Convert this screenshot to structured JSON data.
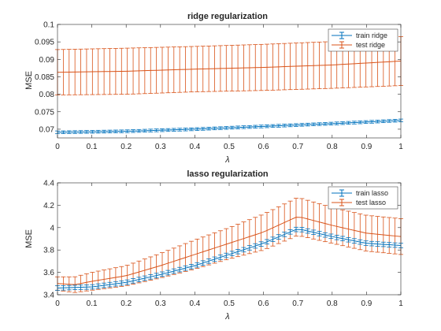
{
  "colors": {
    "train": "#0072BD",
    "test": "#D95319",
    "axis": "#262626"
  },
  "chart_data": [
    {
      "type": "line",
      "title": "ridge regularization",
      "xlabel": "λ",
      "ylabel": "MSE",
      "xlim": [
        0,
        1
      ],
      "ylim": [
        0.0675,
        0.1
      ],
      "xticks": [
        "0",
        "0.1",
        "0.2",
        "0.3",
        "0.4",
        "0.5",
        "0.6",
        "0.7",
        "0.8",
        "0.9",
        "1"
      ],
      "yticks": [
        "0.07",
        "0.075",
        "0.08",
        "0.085",
        "0.09",
        "0.095",
        "0.1"
      ],
      "legend": {
        "location": "top-right",
        "entries": [
          "train ridge",
          "test ridge"
        ]
      },
      "errorbars": true,
      "x_range": [
        0,
        1
      ],
      "n_points": 60,
      "series": [
        {
          "name": "train ridge",
          "color_key": "train",
          "x_anchors": [
            0,
            0.2,
            0.4,
            0.6,
            0.8,
            1.0
          ],
          "mean_anchors": [
            0.0691,
            0.0694,
            0.07,
            0.0708,
            0.0716,
            0.0725
          ],
          "err_anchors": [
            0.0004,
            0.0004,
            0.0004,
            0.0004,
            0.0004,
            0.0004
          ]
        },
        {
          "name": "test ridge",
          "color_key": "test",
          "x_anchors": [
            0,
            0.2,
            0.4,
            0.6,
            0.8,
            1.0
          ],
          "mean_anchors": [
            0.0863,
            0.0866,
            0.0872,
            0.0877,
            0.0884,
            0.0895
          ],
          "err_anchors": [
            0.0065,
            0.0066,
            0.0065,
            0.0066,
            0.0067,
            0.007
          ]
        }
      ]
    },
    {
      "type": "line",
      "title": "lasso regularization",
      "xlabel": "λ",
      "ylabel": "MSE",
      "xlim": [
        0,
        1
      ],
      "ylim": [
        3.4,
        4.4
      ],
      "xticks": [
        "0",
        "0.1",
        "0.2",
        "0.3",
        "0.4",
        "0.5",
        "0.6",
        "0.7",
        "0.8",
        "0.9",
        "1"
      ],
      "yticks": [
        "3.4",
        "3.6",
        "3.8",
        "4",
        "4.2",
        "4.4"
      ],
      "legend": {
        "location": "top-right",
        "entries": [
          "train lasso",
          "test lasso"
        ]
      },
      "errorbars": true,
      "x_range": [
        0,
        1
      ],
      "n_points": 60,
      "series": [
        {
          "name": "train lasso",
          "color_key": "train",
          "x_anchors": [
            0,
            0.1,
            0.2,
            0.3,
            0.4,
            0.5,
            0.6,
            0.7,
            0.8,
            0.9,
            1.0
          ],
          "mean_anchors": [
            3.46,
            3.47,
            3.51,
            3.58,
            3.66,
            3.76,
            3.86,
            3.99,
            3.92,
            3.86,
            3.84
          ],
          "err_anchors": [
            0.02,
            0.02,
            0.02,
            0.02,
            0.02,
            0.02,
            0.02,
            0.02,
            0.02,
            0.02,
            0.02
          ]
        },
        {
          "name": "test lasso",
          "color_key": "test",
          "x_anchors": [
            0,
            0.05,
            0.1,
            0.2,
            0.3,
            0.4,
            0.5,
            0.6,
            0.7,
            0.8,
            0.9,
            1.0
          ],
          "mean_anchors": [
            3.5,
            3.49,
            3.52,
            3.57,
            3.66,
            3.76,
            3.86,
            3.96,
            4.1,
            4.02,
            3.95,
            3.92
          ],
          "err_anchors": [
            0.06,
            0.07,
            0.08,
            0.09,
            0.11,
            0.13,
            0.14,
            0.16,
            0.17,
            0.16,
            0.16,
            0.16
          ]
        }
      ]
    }
  ]
}
